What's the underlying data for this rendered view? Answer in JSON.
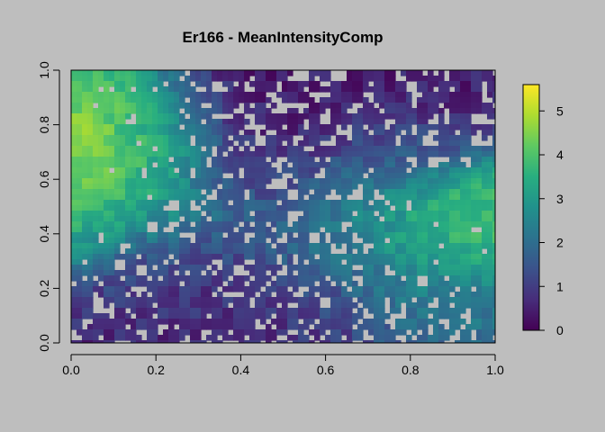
{
  "chart_data": {
    "type": "heatmap",
    "title": "Er166 - MeanIntensityComp",
    "xlabel": "",
    "ylabel": "",
    "xlim": [
      0,
      1
    ],
    "ylim": [
      0,
      1
    ],
    "x_ticks": [
      "0.0",
      "0.2",
      "0.4",
      "0.6",
      "0.8",
      "1.0"
    ],
    "y_ticks": [
      "0.0",
      "0.2",
      "0.4",
      "0.6",
      "0.8",
      "1.0"
    ],
    "colorbar": {
      "min": 0,
      "max": 5.6,
      "ticks": [
        "0",
        "1",
        "2",
        "3",
        "4",
        "5"
      ],
      "colormap": "viridis"
    },
    "background_color": "#bebebe",
    "blobs": [
      {
        "x": 0.06,
        "y": 0.72,
        "v": 5.1,
        "r": 0.13
      },
      {
        "x": 0.1,
        "y": 0.88,
        "v": 4.3,
        "r": 0.12
      },
      {
        "x": 0.12,
        "y": 0.58,
        "v": 4.2,
        "r": 0.12
      },
      {
        "x": 0.05,
        "y": 0.45,
        "v": 3.6,
        "r": 0.1
      },
      {
        "x": 0.2,
        "y": 0.72,
        "v": 3.2,
        "r": 0.09
      },
      {
        "x": 0.26,
        "y": 0.5,
        "v": 2.8,
        "r": 0.09
      },
      {
        "x": 0.2,
        "y": 0.3,
        "v": 1.2,
        "r": 0.12
      },
      {
        "x": 0.45,
        "y": 0.6,
        "v": 0.7,
        "r": 0.16
      },
      {
        "x": 0.4,
        "y": 0.9,
        "v": 0.4,
        "r": 0.16
      },
      {
        "x": 0.7,
        "y": 0.9,
        "v": 0.5,
        "r": 0.16
      },
      {
        "x": 0.58,
        "y": 0.4,
        "v": 2.4,
        "r": 0.14
      },
      {
        "x": 0.7,
        "y": 0.5,
        "v": 2.6,
        "r": 0.12
      },
      {
        "x": 0.85,
        "y": 0.45,
        "v": 4.1,
        "r": 0.12
      },
      {
        "x": 0.93,
        "y": 0.4,
        "v": 4.0,
        "r": 0.1
      },
      {
        "x": 0.8,
        "y": 0.25,
        "v": 2.6,
        "r": 0.12
      },
      {
        "x": 0.92,
        "y": 0.2,
        "v": 2.4,
        "r": 0.1
      },
      {
        "x": 0.55,
        "y": 0.15,
        "v": 0.9,
        "r": 0.16
      },
      {
        "x": 0.3,
        "y": 0.1,
        "v": 0.6,
        "r": 0.16
      },
      {
        "x": 0.85,
        "y": 0.05,
        "v": 1.8,
        "r": 0.08
      },
      {
        "x": 0.75,
        "y": 0.7,
        "v": 1.5,
        "r": 0.1
      }
    ]
  }
}
